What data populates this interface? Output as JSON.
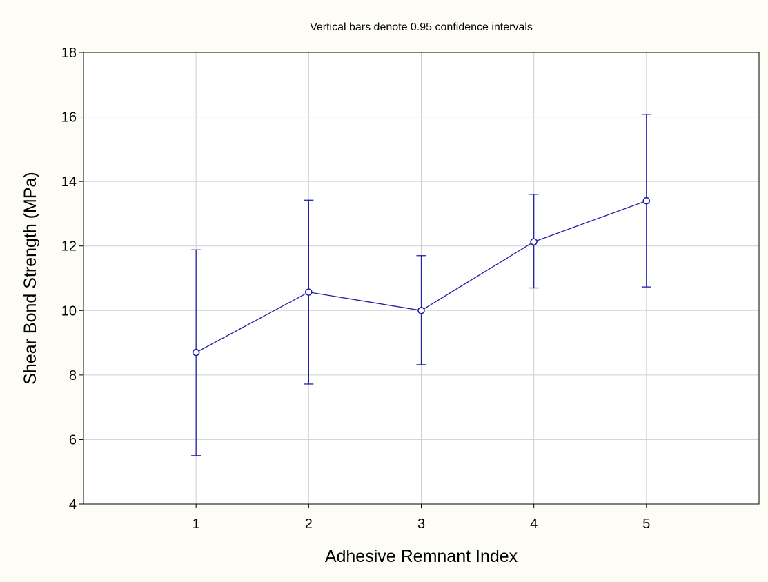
{
  "chart_data": {
    "type": "line",
    "title": "Vertical bars denote 0.95 confidence intervals",
    "xlabel": "Adhesive Remnant Index",
    "ylabel": "Shear Bond Strength (MPa)",
    "categories": [
      "1",
      "2",
      "3",
      "4",
      "5"
    ],
    "x": [
      1,
      2,
      3,
      4,
      5
    ],
    "xlim": [
      0,
      6
    ],
    "ylim": [
      4,
      18
    ],
    "yticks": [
      4,
      6,
      8,
      10,
      12,
      14,
      16,
      18
    ],
    "ytick_labels": [
      "4",
      "6",
      "8",
      "10",
      "12",
      "14",
      "16",
      "18"
    ],
    "grid": true,
    "series": [
      {
        "values": [
          8.7,
          10.57,
          10.0,
          12.13,
          13.4
        ],
        "ci_lower": [
          5.5,
          7.72,
          8.32,
          10.7,
          10.73
        ],
        "ci_upper": [
          11.88,
          13.42,
          11.7,
          13.6,
          16.08
        ]
      }
    ],
    "colors": {
      "series": "#1f1fa8",
      "grid": "#cfcfcf",
      "axis": "#000000",
      "plot_bg": "#ffffff",
      "page_bg": "#fdfdf5"
    }
  }
}
